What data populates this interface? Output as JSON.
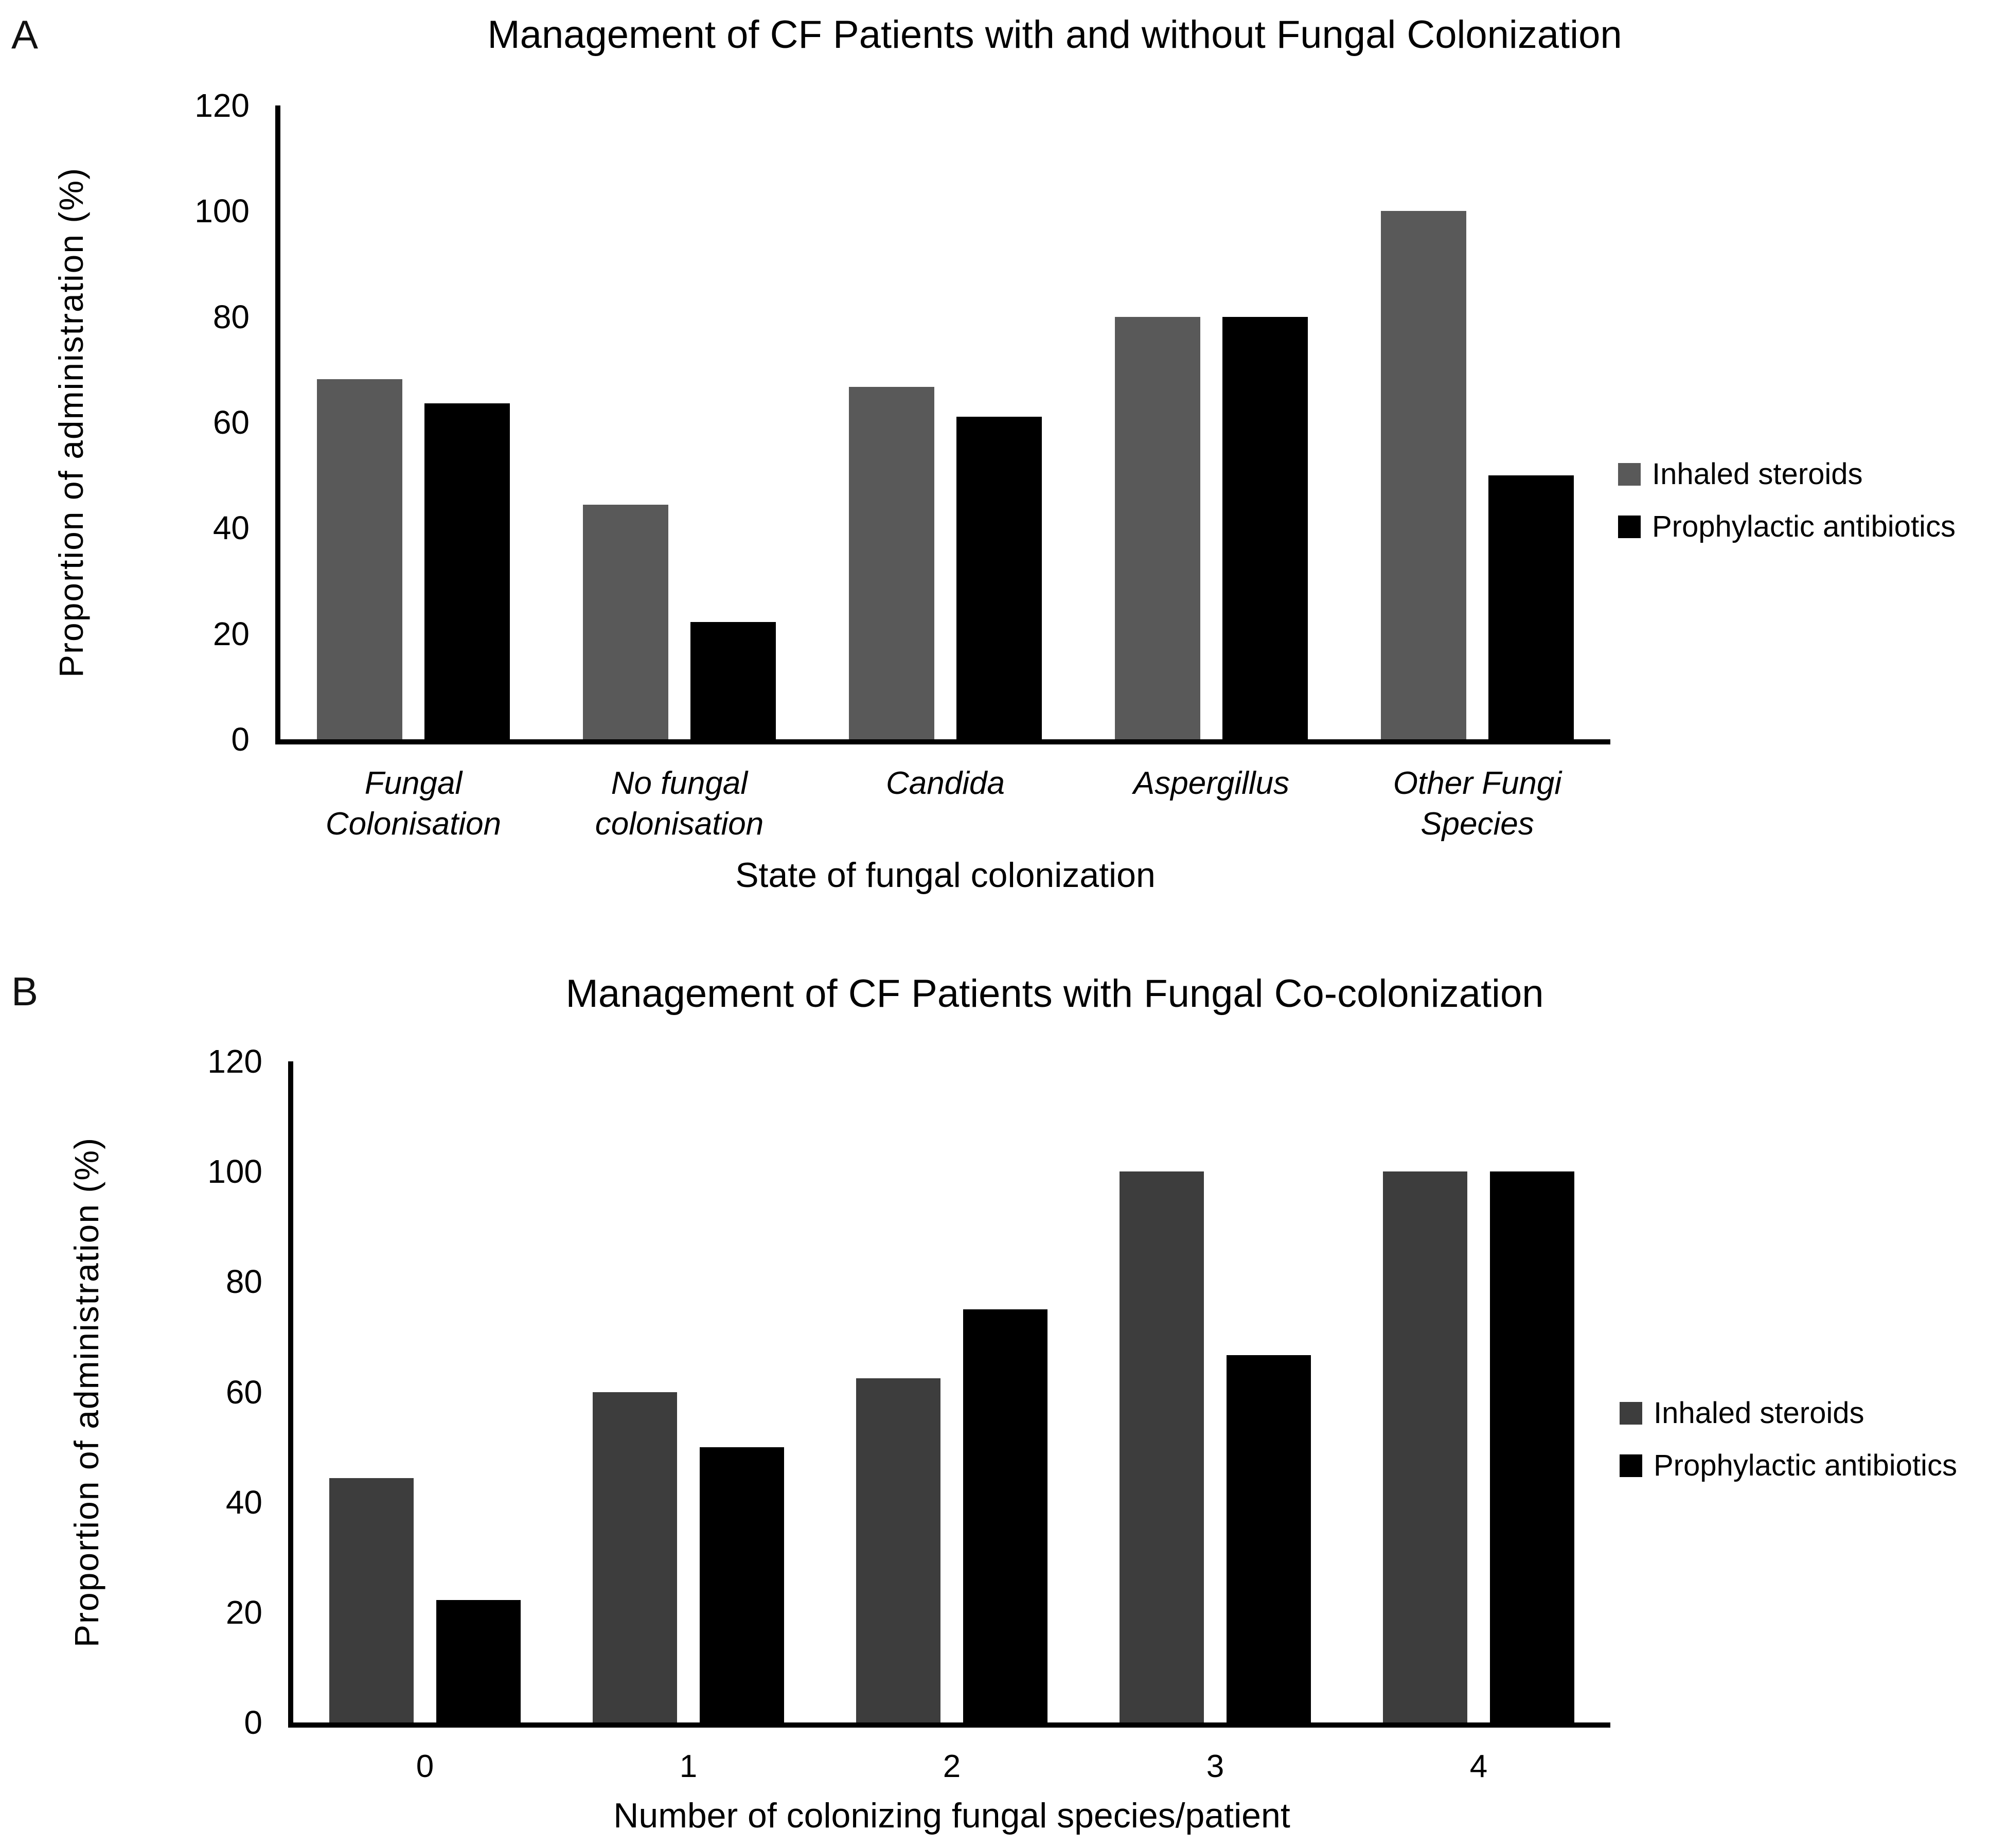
{
  "figure": {
    "background": "#ffffff",
    "axis_color": "#000000"
  },
  "chart_data": [
    {
      "panel_label": "A",
      "type": "bar",
      "title": "Management of CF Patients with and without Fungal Colonization",
      "xlabel": "State of fungal colonization",
      "ylabel": "Proportion of administration (%)",
      "ylim": [
        0,
        120
      ],
      "yticks": [
        0,
        20,
        40,
        60,
        80,
        100,
        120
      ],
      "grid": false,
      "legend_position": "right",
      "categories": [
        "Fungal\nColonisation",
        "No fungal\ncolonisation",
        "Candida",
        "Aspergillus",
        "Other Fungi\nSpecies"
      ],
      "categories_italic": true,
      "series": [
        {
          "name": "Inhaled steroids",
          "color": "#595959",
          "values": [
            68.2,
            44.4,
            66.7,
            80,
            100
          ]
        },
        {
          "name": "Prophylactic antibiotics",
          "color": "#000000",
          "values": [
            63.6,
            22.2,
            61.1,
            80,
            50
          ]
        }
      ]
    },
    {
      "panel_label": "B",
      "type": "bar",
      "title": "Management of CF Patients with Fungal Co-colonization",
      "xlabel": "Number of colonizing fungal species/patient",
      "ylabel": "Proportion of administration (%)",
      "ylim": [
        0,
        120
      ],
      "yticks": [
        0,
        20,
        40,
        60,
        80,
        100,
        120
      ],
      "grid": false,
      "legend_position": "right",
      "categories": [
        "0",
        "1",
        "2",
        "3",
        "4"
      ],
      "categories_italic": false,
      "series": [
        {
          "name": "Inhaled steroids",
          "color": "#3d3d3d",
          "values": [
            44.4,
            60,
            62.5,
            100,
            100
          ]
        },
        {
          "name": "Prophylactic antibiotics",
          "color": "#000000",
          "values": [
            22.2,
            50,
            75,
            66.7,
            100
          ]
        }
      ]
    }
  ]
}
